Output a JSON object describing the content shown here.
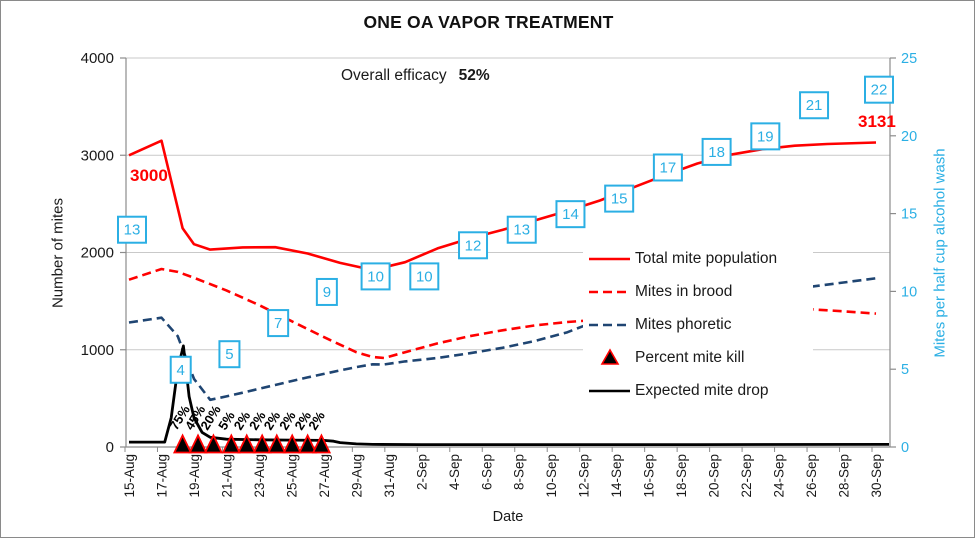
{
  "annotations": {
    "efficacy_label": "Overall efficacy",
    "efficacy_value": "52%",
    "start_count": "3000",
    "end_count": "3131"
  },
  "colors": {
    "red": "#ff0000",
    "navy": "#1f4572",
    "cyan": "#2bafe4",
    "black": "#000000",
    "grid": "#c9c9c9",
    "axis": "#8c8c8c",
    "text": "#1a1a1a"
  },
  "chart_data": {
    "type": "line",
    "title": "ONE OA VAPOR TREATMENT",
    "xlabel": "Date",
    "ylabel_left": "Number of mites",
    "ylabel_right": "Mites per half cup alcohol wash",
    "x_unit": "days since 15-Aug",
    "x_tick_labels": [
      "15-Aug",
      "17-Aug",
      "19-Aug",
      "21-Aug",
      "23-Aug",
      "25-Aug",
      "27-Aug",
      "29-Aug",
      "31-Aug",
      "2-Sep",
      "4-Sep",
      "6-Sep",
      "8-Sep",
      "10-Sep",
      "12-Sep",
      "14-Sep",
      "16-Sep",
      "18-Sep",
      "20-Sep",
      "22-Sep",
      "24-Sep",
      "26-Sep",
      "28-Sep",
      "30-Sep"
    ],
    "ylim_left": [
      0,
      4000
    ],
    "yticks_left": [
      0,
      1000,
      2000,
      3000,
      4000
    ],
    "ylim_right": [
      0,
      25
    ],
    "yticks_right": [
      0,
      5,
      10,
      15,
      20,
      25
    ],
    "grid": "horizontal",
    "legend_position": "middle-right",
    "series": [
      {
        "name": "Mites in brood",
        "color": "#ff0000",
        "style": "dashed",
        "axis": "left",
        "points": [
          [
            0,
            1720
          ],
          [
            2,
            1830
          ],
          [
            3,
            1800
          ],
          [
            4,
            1740
          ],
          [
            6,
            1610
          ],
          [
            8,
            1460
          ],
          [
            10,
            1295
          ],
          [
            12,
            1130
          ],
          [
            14,
            975
          ],
          [
            15,
            925
          ],
          [
            15.7,
            915
          ],
          [
            17,
            975
          ],
          [
            19,
            1065
          ],
          [
            21,
            1140
          ],
          [
            23,
            1200
          ],
          [
            25,
            1250
          ],
          [
            27,
            1285
          ],
          [
            29,
            1310
          ],
          [
            31,
            1335
          ],
          [
            33,
            1360
          ],
          [
            35,
            1382
          ],
          [
            37,
            1400
          ],
          [
            39,
            1412
          ],
          [
            41,
            1418
          ],
          [
            42,
            1416
          ],
          [
            44,
            1395
          ],
          [
            46,
            1372
          ]
        ]
      },
      {
        "name": "Mites phoretic",
        "color": "#1f4572",
        "style": "dashed",
        "axis": "left",
        "points": [
          [
            0,
            1280
          ],
          [
            2,
            1330
          ],
          [
            3,
            1140
          ],
          [
            4,
            700
          ],
          [
            5,
            485
          ],
          [
            6,
            520
          ],
          [
            7,
            558
          ],
          [
            8,
            598
          ],
          [
            9,
            638
          ],
          [
            10,
            678
          ],
          [
            11,
            716
          ],
          [
            12,
            752
          ],
          [
            13,
            788
          ],
          [
            14,
            822
          ],
          [
            15,
            850
          ],
          [
            15.7,
            848
          ],
          [
            17,
            880
          ],
          [
            19,
            915
          ],
          [
            21,
            965
          ],
          [
            23,
            1020
          ],
          [
            25,
            1090
          ],
          [
            27,
            1180
          ],
          [
            28,
            1245
          ],
          [
            30,
            1320
          ],
          [
            32,
            1395
          ],
          [
            34,
            1465
          ],
          [
            36,
            1530
          ],
          [
            38,
            1585
          ],
          [
            40,
            1625
          ],
          [
            42,
            1648
          ],
          [
            44,
            1692
          ],
          [
            46,
            1735
          ]
        ]
      },
      {
        "name": "Total mite population",
        "color": "#ff0000",
        "style": "solid",
        "axis": "left",
        "points": [
          [
            0,
            3000
          ],
          [
            2,
            3150
          ],
          [
            3.3,
            2250
          ],
          [
            4,
            2085
          ],
          [
            5,
            2030
          ],
          [
            7,
            2052
          ],
          [
            9,
            2055
          ],
          [
            11,
            1990
          ],
          [
            13,
            1893
          ],
          [
            15,
            1820
          ],
          [
            17,
            1900
          ],
          [
            19,
            2042
          ],
          [
            21,
            2145
          ],
          [
            23,
            2232
          ],
          [
            25,
            2330
          ],
          [
            27,
            2428
          ],
          [
            29,
            2535
          ],
          [
            31,
            2665
          ],
          [
            33,
            2795
          ],
          [
            35,
            2915
          ],
          [
            37,
            3005
          ],
          [
            39,
            3062
          ],
          [
            41,
            3098
          ],
          [
            43,
            3116
          ],
          [
            45,
            3126
          ],
          [
            46,
            3131
          ]
        ]
      },
      {
        "name": "Expected mite drop",
        "color": "#000000",
        "style": "solid",
        "axis": "left",
        "points": [
          [
            0,
            50
          ],
          [
            2.2,
            50
          ],
          [
            2.6,
            300
          ],
          [
            3,
            800
          ],
          [
            3.35,
            1040
          ],
          [
            3.7,
            520
          ],
          [
            4,
            300
          ],
          [
            4.5,
            150
          ],
          [
            5,
            100
          ],
          [
            6,
            80
          ],
          [
            8,
            74
          ],
          [
            10,
            71
          ],
          [
            12,
            68
          ],
          [
            12.6,
            60
          ],
          [
            13,
            45
          ],
          [
            14,
            32
          ],
          [
            15,
            27
          ],
          [
            18,
            25
          ],
          [
            25,
            25
          ],
          [
            35,
            25
          ],
          [
            46.8,
            27
          ]
        ]
      },
      {
        "name": "Percent mite kill",
        "type": "marker",
        "marker": "triangle",
        "fill": "#000000",
        "stroke": "#ff0000",
        "days": [
          3.3,
          4.25,
          5.2,
          6.3,
          7.25,
          8.2,
          9.1,
          10.05,
          11.0,
          11.85
        ],
        "values_pct": [
          75,
          45,
          20,
          5,
          2,
          2,
          2,
          2,
          2,
          2
        ],
        "labels": [
          "75%",
          "45%",
          "20%",
          "5%",
          "2%",
          "2%",
          "2%",
          "2%",
          "2%",
          "2%"
        ]
      }
    ],
    "wash_counts": {
      "name": "Mites per half cup alcohol wash (boxed labels)",
      "axis": "right",
      "days": [
        0,
        3,
        6,
        9,
        12,
        15,
        18,
        21,
        24,
        27,
        30,
        33,
        36,
        39,
        42,
        46
      ],
      "values": [
        13,
        4,
        5,
        7,
        9,
        10,
        10,
        12,
        13,
        14,
        15,
        17,
        18,
        19,
        21,
        22
      ]
    },
    "legend_entries": [
      "Total mite population",
      "Mites in brood",
      "Mites phoretic",
      "Percent mite kill",
      "Expected mite drop"
    ]
  }
}
